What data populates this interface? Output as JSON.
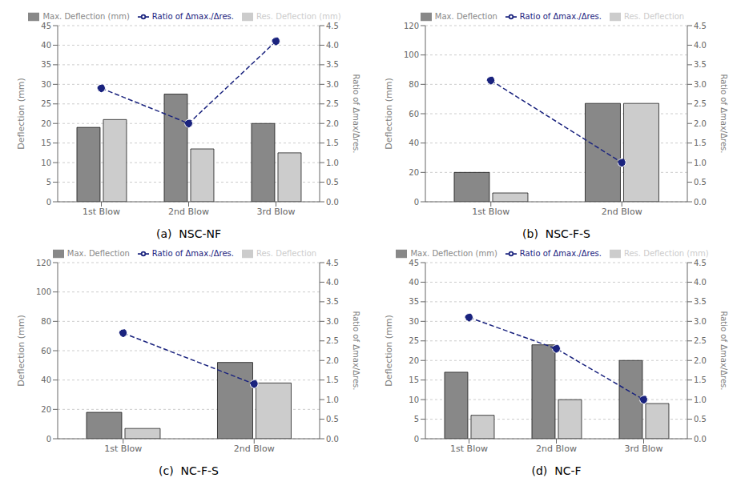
{
  "chart_data": [
    {
      "type": "bar",
      "title": "(a)  NSC-NF",
      "categories": [
        "1st Blow",
        "2nd Blow",
        "3rd Blow"
      ],
      "series": [
        {
          "name": "Max. Deflection (mm)",
          "type": "bar",
          "color": "#888888",
          "values": [
            19,
            27.5,
            20
          ]
        },
        {
          "name": "Res. Deflection (mm)",
          "type": "bar",
          "color": "#cccccc",
          "values": [
            21,
            13.5,
            12.5
          ]
        },
        {
          "name": "Ratio of Δmax./Δres.",
          "type": "line",
          "axis": "y2",
          "color": "#1a237e",
          "marker": "circle",
          "line_style": "dashed",
          "values": [
            2.9,
            2.0,
            4.1
          ]
        }
      ],
      "ylabel": "Deflection (mm)",
      "y2label": "Ratio of Δmax/Δres.",
      "ylim": [
        0,
        45
      ],
      "yticks": [
        0,
        5,
        10,
        15,
        20,
        25,
        30,
        35,
        40,
        45
      ],
      "y2lim": [
        0,
        4.5
      ],
      "y2ticks": [
        {
          "value": 0,
          "label": "0.0"
        },
        0.5,
        {
          "value": 1,
          "label": "1.0"
        },
        1.5,
        {
          "value": 2,
          "label": "2.0"
        },
        2.5,
        {
          "value": 3,
          "label": "3.0"
        },
        3.5,
        {
          "value": 4,
          "label": "4.0"
        },
        4.5
      ],
      "grid": true,
      "legend": "top"
    },
    {
      "type": "bar",
      "title": "(b)  NSC-F-S",
      "categories": [
        "1st Blow",
        "2nd Blow"
      ],
      "series": [
        {
          "name": "Max. Deflection",
          "type": "bar",
          "color": "#888888",
          "values": [
            20,
            67
          ]
        },
        {
          "name": "Res. Deflection",
          "type": "bar",
          "color": "#cccccc",
          "values": [
            6,
            67
          ]
        },
        {
          "name": "Ratio of Δmax./Δres.",
          "type": "line",
          "axis": "y2",
          "color": "#1a237e",
          "marker": "circle",
          "line_style": "dashed",
          "values": [
            3.1,
            1.0
          ]
        }
      ],
      "ylabel": "Deflection (mm)",
      "y2label": "Ratio of Δmax/Δres.",
      "ylim": [
        0,
        120
      ],
      "yticks": [
        0,
        20,
        40,
        60,
        80,
        100,
        120
      ],
      "y2lim": [
        0,
        4.5
      ],
      "y2ticks": [
        {
          "value": 0,
          "label": "0.0"
        },
        0.5,
        {
          "value": 1,
          "label": "1.0"
        },
        1.5,
        {
          "value": 2,
          "label": "2.0"
        },
        2.5,
        {
          "value": 3,
          "label": "3.0"
        },
        3.5,
        {
          "value": 4,
          "label": "4.0"
        },
        4.5
      ],
      "grid": true,
      "legend": "top"
    },
    {
      "type": "bar",
      "title": "(c)  NC-F-S",
      "categories": [
        "1st Blow",
        "2nd Blow"
      ],
      "series": [
        {
          "name": "Max. Deflection",
          "type": "bar",
          "color": "#888888",
          "values": [
            18,
            52
          ]
        },
        {
          "name": "Res. Deflection",
          "type": "bar",
          "color": "#cccccc",
          "values": [
            7,
            38
          ]
        },
        {
          "name": "Ratio of Δmax./Δres.",
          "type": "line",
          "axis": "y2",
          "color": "#1a237e",
          "marker": "circle",
          "line_style": "dashed",
          "values": [
            2.7,
            1.4
          ]
        }
      ],
      "ylabel": "Deflection (mm)",
      "y2label": "Ratio of Δmax/Δres.",
      "ylim": [
        0,
        120
      ],
      "yticks": [
        0,
        20,
        40,
        60,
        80,
        100,
        120
      ],
      "y2lim": [
        0,
        4.5
      ],
      "y2ticks": [
        {
          "value": 0,
          "label": "0.0"
        },
        0.5,
        {
          "value": 1,
          "label": "1.0"
        },
        1.5,
        {
          "value": 2,
          "label": "2.0"
        },
        2.5,
        {
          "value": 3,
          "label": "3.0"
        },
        3.5,
        {
          "value": 4,
          "label": "4.0"
        },
        4.5
      ],
      "grid": true,
      "legend": "top"
    },
    {
      "type": "bar",
      "title": "(d)  NC-F",
      "categories": [
        "1st Blow",
        "2nd Blow",
        "3rd Blow"
      ],
      "series": [
        {
          "name": "Max. Deflection (mm)",
          "type": "bar",
          "color": "#888888",
          "values": [
            17,
            24,
            20
          ]
        },
        {
          "name": "Res. Deflection (mm)",
          "type": "bar",
          "color": "#cccccc",
          "values": [
            6,
            10,
            9
          ]
        },
        {
          "name": "Ratio of Δmax./Δres.",
          "type": "line",
          "axis": "y2",
          "color": "#1a237e",
          "marker": "circle",
          "line_style": "dashed",
          "values": [
            3.1,
            2.3,
            1.0
          ]
        }
      ],
      "ylabel": "Deflection (mm)",
      "y2label": "Ratio of Δmax/Δres.",
      "ylim": [
        0,
        45
      ],
      "yticks": [
        0,
        5,
        10,
        15,
        20,
        25,
        30,
        35,
        40,
        45
      ],
      "y2lim": [
        0,
        4.5
      ],
      "y2ticks": [
        {
          "value": 0,
          "label": "0.0"
        },
        0.5,
        {
          "value": 1,
          "label": "1.0"
        },
        1.5,
        {
          "value": 2,
          "label": "2.0"
        },
        2.5,
        {
          "value": 3,
          "label": "3.0"
        },
        3.5,
        {
          "value": 4,
          "label": "4.0"
        },
        4.5
      ],
      "grid": true,
      "legend": "top"
    }
  ]
}
